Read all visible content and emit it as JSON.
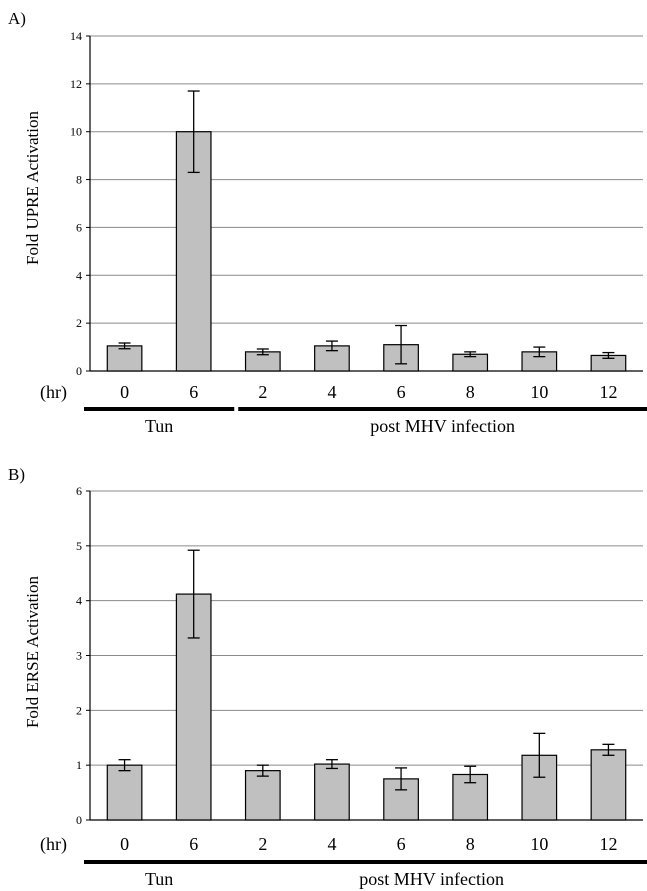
{
  "chart_data": [
    {
      "type": "bar",
      "panel_label": "A)",
      "ylabel": "Fold UPRE Activation",
      "x_unit_label": "(hr)",
      "categories": [
        "0",
        "6",
        "2",
        "4",
        "6",
        "8",
        "10",
        "12"
      ],
      "values": [
        1.05,
        10.0,
        0.8,
        1.05,
        1.1,
        0.7,
        0.8,
        0.65
      ],
      "error": [
        0.12,
        1.7,
        0.12,
        0.2,
        0.8,
        0.1,
        0.2,
        0.12
      ],
      "ylim": [
        0,
        14
      ],
      "yticks": [
        "0",
        "2",
        "4",
        "6",
        "8",
        "10",
        "12",
        "14"
      ],
      "grid": true,
      "bar_color": "#c0c0c0",
      "groups": [
        {
          "label": "Tun",
          "categories": [
            "0",
            "6"
          ]
        },
        {
          "label": "post MHV infection",
          "categories": [
            "2",
            "4",
            "6",
            "8",
            "10",
            "12"
          ]
        }
      ]
    },
    {
      "type": "bar",
      "panel_label": "B)",
      "ylabel": "Fold ERSE Activation",
      "x_unit_label": "(hr)",
      "categories": [
        "0",
        "6",
        "2",
        "4",
        "6",
        "8",
        "10",
        "12"
      ],
      "values": [
        1.0,
        4.12,
        0.9,
        1.02,
        0.75,
        0.83,
        1.18,
        1.28
      ],
      "error": [
        0.1,
        0.8,
        0.1,
        0.08,
        0.2,
        0.15,
        0.4,
        0.1
      ],
      "ylim": [
        0,
        6
      ],
      "yticks": [
        "0",
        "1",
        "2",
        "3",
        "4",
        "5",
        "6"
      ],
      "grid": true,
      "bar_color": "#c0c0c0",
      "groups": [
        {
          "label": "Tun",
          "categories": [
            "0",
            "6"
          ]
        },
        {
          "label": "post MHV infection",
          "categories": [
            "2",
            "4",
            "6",
            "8",
            "10",
            "12"
          ]
        }
      ]
    }
  ]
}
